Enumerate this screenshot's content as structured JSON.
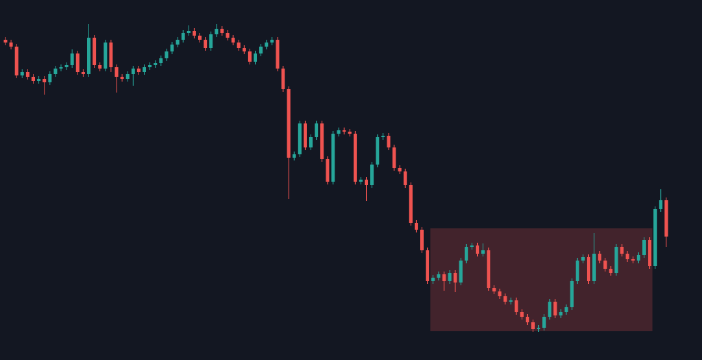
{
  "chart_data": {
    "type": "candlestick",
    "up_color": "#26a69a",
    "down_color": "#ef5350",
    "ylim": [
      0,
      525
    ],
    "open": [
      467,
      463,
      457,
      415,
      420,
      413,
      407,
      410,
      405,
      417,
      425,
      427,
      430,
      447,
      420,
      417,
      470,
      430,
      425,
      463,
      427,
      413,
      410,
      417,
      425,
      420,
      427,
      430,
      433,
      440,
      450,
      460,
      467,
      477,
      480,
      473,
      467,
      455,
      475,
      483,
      477,
      470,
      463,
      455,
      450,
      435,
      447,
      457,
      463,
      467,
      425,
      395,
      295,
      300,
      345,
      310,
      325,
      345,
      293,
      260,
      330,
      335,
      333,
      330,
      260,
      263,
      255,
      285,
      325,
      327,
      310,
      280,
      275,
      255,
      200,
      190,
      160,
      115,
      120,
      125,
      115,
      127,
      113,
      145,
      165,
      167,
      155,
      160,
      105,
      100,
      93,
      85,
      87,
      70,
      63,
      55,
      45,
      47,
      63,
      85,
      65,
      70,
      77,
      115,
      145,
      150,
      115,
      155,
      145,
      133,
      127,
      165,
      155,
      147,
      145,
      153,
      175,
      137,
      220,
      233
    ],
    "high": [
      471,
      467,
      461,
      424,
      424,
      417,
      414,
      414,
      421,
      429,
      431,
      434,
      453,
      451,
      424,
      490,
      474,
      434,
      467,
      467,
      431,
      417,
      421,
      429,
      429,
      431,
      434,
      437,
      444,
      454,
      464,
      471,
      481,
      488,
      484,
      477,
      471,
      479,
      490,
      487,
      481,
      474,
      467,
      459,
      454,
      451,
      461,
      467,
      471,
      471,
      429,
      399,
      304,
      349,
      349,
      329,
      349,
      349,
      297,
      334,
      339,
      339,
      337,
      334,
      267,
      267,
      289,
      329,
      331,
      331,
      314,
      284,
      279,
      259,
      204,
      194,
      164,
      124,
      129,
      129,
      131,
      131,
      149,
      169,
      171,
      171,
      170,
      164,
      109,
      104,
      97,
      91,
      91,
      74,
      67,
      59,
      51,
      67,
      89,
      89,
      74,
      81,
      119,
      149,
      154,
      154,
      185,
      159,
      149,
      137,
      169,
      169,
      159,
      151,
      157,
      179,
      179,
      224,
      249,
      237
    ],
    "low": [
      459,
      453,
      411,
      411,
      409,
      403,
      403,
      387,
      401,
      413,
      421,
      423,
      426,
      416,
      413,
      413,
      426,
      421,
      421,
      420,
      390,
      406,
      406,
      400,
      416,
      416,
      423,
      426,
      429,
      436,
      446,
      456,
      463,
      473,
      469,
      463,
      451,
      451,
      471,
      473,
      466,
      459,
      451,
      446,
      431,
      431,
      443,
      453,
      459,
      421,
      391,
      235,
      291,
      296,
      306,
      306,
      321,
      289,
      256,
      256,
      326,
      329,
      326,
      256,
      256,
      232,
      251,
      281,
      321,
      306,
      276,
      271,
      251,
      196,
      186,
      156,
      111,
      111,
      116,
      101,
      111,
      99,
      109,
      141,
      161,
      151,
      151,
      101,
      96,
      89,
      81,
      81,
      66,
      59,
      51,
      41,
      41,
      43,
      59,
      61,
      61,
      66,
      73,
      111,
      141,
      111,
      111,
      141,
      129,
      123,
      123,
      151,
      143,
      141,
      141,
      149,
      133,
      133,
      216,
      165
    ],
    "close": [
      463,
      457,
      415,
      420,
      413,
      407,
      410,
      405,
      417,
      425,
      427,
      430,
      447,
      420,
      417,
      470,
      430,
      425,
      463,
      427,
      413,
      410,
      417,
      425,
      420,
      427,
      430,
      433,
      440,
      450,
      460,
      467,
      477,
      480,
      473,
      467,
      455,
      475,
      483,
      477,
      470,
      463,
      455,
      450,
      435,
      447,
      457,
      463,
      467,
      425,
      395,
      295,
      300,
      345,
      310,
      325,
      345,
      293,
      260,
      330,
      335,
      333,
      330,
      260,
      263,
      255,
      285,
      325,
      327,
      310,
      280,
      275,
      255,
      200,
      190,
      160,
      115,
      120,
      125,
      115,
      127,
      113,
      145,
      165,
      167,
      155,
      160,
      105,
      100,
      93,
      85,
      87,
      70,
      63,
      55,
      45,
      47,
      63,
      85,
      65,
      70,
      77,
      115,
      145,
      150,
      115,
      155,
      145,
      133,
      127,
      165,
      155,
      147,
      145,
      153,
      175,
      137,
      220,
      233,
      180
    ],
    "zone": {
      "start": 77,
      "end": 116,
      "low": 42,
      "high": 192,
      "color": "#ef5350"
    }
  }
}
